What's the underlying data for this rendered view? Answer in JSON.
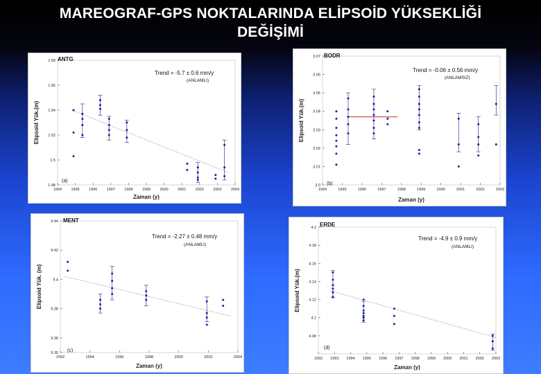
{
  "page": {
    "title_line1": "MAREOGRAF-GPS NOKTALARINDA ELİPSOİD YÜKSEKLİĞİ",
    "title_line2": "DEĞİŞİMİ"
  },
  "chart_data": [
    {
      "type": "scatter",
      "station": "ANTG",
      "panel_label": "(a)",
      "trend_text": "Trend = -5.7 ± 0.6 mm/y",
      "significance": "(ANLAMLI)",
      "xlabel": "Zaman (y)",
      "ylabel": "Elipsoid Yük.(m)",
      "xlim": [
        1994,
        2004
      ],
      "ylim": [
        1.48,
        1.58
      ],
      "x_ticks": [
        1994,
        1995,
        1996,
        1997,
        1998,
        1999,
        2000,
        2001,
        2002,
        2003,
        2004
      ],
      "x_tick_labels": [
        "1994",
        "1995",
        "1996",
        "1997",
        "1998",
        "1999",
        "2000",
        "2001",
        "2002",
        "2003",
        "2004"
      ],
      "y_ticks": [
        1.48,
        1.5,
        1.52,
        1.54,
        1.56,
        1.58
      ],
      "y_tick_labels": [
        "1.48",
        "1.5",
        "1.52",
        "1.54",
        "1.56",
        "1.58"
      ],
      "points": [
        {
          "x": 1994.9,
          "y": 1.54
        },
        {
          "x": 1994.9,
          "y": 1.522
        },
        {
          "x": 1994.9,
          "y": 1.503
        },
        {
          "x": 1995.4,
          "y": 1.537
        },
        {
          "x": 1995.4,
          "y": 1.533
        },
        {
          "x": 1995.4,
          "y": 1.528
        },
        {
          "x": 1995.4,
          "y": 1.52
        },
        {
          "x": 1996.4,
          "y": 1.548
        },
        {
          "x": 1996.4,
          "y": 1.544
        },
        {
          "x": 1996.4,
          "y": 1.541
        },
        {
          "x": 1996.9,
          "y": 1.533
        },
        {
          "x": 1996.9,
          "y": 1.528
        },
        {
          "x": 1996.9,
          "y": 1.524
        },
        {
          "x": 1996.9,
          "y": 1.52
        },
        {
          "x": 1997.9,
          "y": 1.53
        },
        {
          "x": 1997.9,
          "y": 1.524
        },
        {
          "x": 1997.9,
          "y": 1.518
        },
        {
          "x": 2001.3,
          "y": 1.497
        },
        {
          "x": 2001.3,
          "y": 1.492
        },
        {
          "x": 2001.9,
          "y": 1.494
        },
        {
          "x": 2001.9,
          "y": 1.49
        },
        {
          "x": 2001.9,
          "y": 1.486
        },
        {
          "x": 2001.9,
          "y": 1.484
        },
        {
          "x": 2002.9,
          "y": 1.488
        },
        {
          "x": 2002.9,
          "y": 1.485
        },
        {
          "x": 2003.4,
          "y": 1.512
        },
        {
          "x": 2003.4,
          "y": 1.494
        },
        {
          "x": 2003.4,
          "y": 1.487
        }
      ],
      "error_bars": [
        {
          "x": 1995.4,
          "low": 1.518,
          "high": 1.545
        },
        {
          "x": 1996.4,
          "low": 1.536,
          "high": 1.552
        },
        {
          "x": 1996.9,
          "low": 1.516,
          "high": 1.535
        },
        {
          "x": 1997.9,
          "low": 1.514,
          "high": 1.532
        },
        {
          "x": 2001.9,
          "low": 1.482,
          "high": 1.498
        },
        {
          "x": 2003.4,
          "low": 1.484,
          "high": 1.516
        }
      ],
      "trend_line": {
        "x1": 1994.8,
        "y1": 1.54,
        "x2": 2003.6,
        "y2": 1.49
      }
    },
    {
      "type": "scatter",
      "station": "BODR",
      "panel_label": "(b)",
      "trend_text": "Trend = -0.06 ± 0.56 mm/y",
      "significance": "(ANLAMSIZ)",
      "xlabel": "Zaman (y)",
      "ylabel": "Elipsoid Yük.(m)",
      "xlim": [
        1994,
        2003
      ],
      "ylim": [
        3.0,
        3.07
      ],
      "x_ticks": [
        1994,
        1995,
        1996,
        1997,
        1998,
        1999,
        2000,
        2001,
        2002,
        2003
      ],
      "x_tick_labels": [
        "1994",
        "1995",
        "1996",
        "1997",
        "1998",
        "1999",
        "2000",
        "2001",
        "2002",
        "2003"
      ],
      "y_ticks": [
        3.0,
        3.01,
        3.02,
        3.03,
        3.04,
        3.05,
        3.06,
        3.07
      ],
      "y_tick_labels": [
        "3.0",
        "3.01",
        "3.02",
        "3.03",
        "3.04",
        "3.05",
        "3.06",
        "3.07"
      ],
      "points": [
        {
          "x": 1994.7,
          "y": 3.04
        },
        {
          "x": 1994.7,
          "y": 3.036
        },
        {
          "x": 1994.7,
          "y": 3.031
        },
        {
          "x": 1994.7,
          "y": 3.027
        },
        {
          "x": 1994.7,
          "y": 3.024
        },
        {
          "x": 1994.7,
          "y": 3.021
        },
        {
          "x": 1994.7,
          "y": 3.017
        },
        {
          "x": 1994.7,
          "y": 3.011
        },
        {
          "x": 1995.3,
          "y": 3.047
        },
        {
          "x": 1995.3,
          "y": 3.041
        },
        {
          "x": 1995.3,
          "y": 3.037
        },
        {
          "x": 1995.3,
          "y": 3.033
        },
        {
          "x": 1995.3,
          "y": 3.028
        },
        {
          "x": 1996.6,
          "y": 3.048
        },
        {
          "x": 1996.6,
          "y": 3.044
        },
        {
          "x": 1996.6,
          "y": 3.041
        },
        {
          "x": 1996.6,
          "y": 3.038
        },
        {
          "x": 1996.6,
          "y": 3.035
        },
        {
          "x": 1996.6,
          "y": 3.031
        },
        {
          "x": 1996.6,
          "y": 3.028
        },
        {
          "x": 1997.3,
          "y": 3.04
        },
        {
          "x": 1997.3,
          "y": 3.036
        },
        {
          "x": 1997.3,
          "y": 3.033
        },
        {
          "x": 1998.9,
          "y": 3.052
        },
        {
          "x": 1998.9,
          "y": 3.048
        },
        {
          "x": 1998.9,
          "y": 3.044
        },
        {
          "x": 1998.9,
          "y": 3.041
        },
        {
          "x": 1998.9,
          "y": 3.038
        },
        {
          "x": 1998.9,
          "y": 3.034
        },
        {
          "x": 1998.9,
          "y": 3.031
        },
        {
          "x": 1998.9,
          "y": 3.019
        },
        {
          "x": 1998.9,
          "y": 3.017
        },
        {
          "x": 2000.9,
          "y": 3.036
        },
        {
          "x": 2000.9,
          "y": 3.022
        },
        {
          "x": 2000.9,
          "y": 3.01
        },
        {
          "x": 2001.9,
          "y": 3.033
        },
        {
          "x": 2001.9,
          "y": 3.026
        },
        {
          "x": 2001.9,
          "y": 3.022
        },
        {
          "x": 2001.9,
          "y": 3.016
        },
        {
          "x": 2002.8,
          "y": 3.044
        },
        {
          "x": 2002.8,
          "y": 3.022
        }
      ],
      "error_bars": [
        {
          "x": 1995.3,
          "low": 3.022,
          "high": 3.05
        },
        {
          "x": 1996.6,
          "low": 3.025,
          "high": 3.052
        },
        {
          "x": 1998.9,
          "low": 3.03,
          "high": 3.054
        },
        {
          "x": 2000.9,
          "low": 3.018,
          "high": 3.039
        },
        {
          "x": 2001.9,
          "low": 3.018,
          "high": 3.037
        },
        {
          "x": 2002.8,
          "low": 3.038,
          "high": 3.054
        }
      ],
      "trend_line": {
        "x1": 1995.3,
        "y1": 3.037,
        "x2": 1997.8,
        "y2": 3.037
      }
    },
    {
      "type": "scatter",
      "station": "MENT",
      "panel_label": "(c)",
      "trend_text": "Trend = -2.27 ± 0.48 mm/y",
      "significance": "(ANLAMLI)",
      "xlabel": "Zaman (y)",
      "ylabel": "Elipsoid Yük. (m)",
      "xlim": [
        1992,
        2004
      ],
      "ylim": [
        9.35,
        9.44
      ],
      "x_ticks": [
        1992,
        1994,
        1996,
        1998,
        2000,
        2002,
        2004
      ],
      "x_tick_labels": [
        "1992",
        "1994",
        "1996",
        "1998",
        "2000",
        "2002",
        "2004"
      ],
      "y_ticks": [
        9.35,
        9.36,
        9.38,
        9.4,
        9.42,
        9.44
      ],
      "y_tick_labels": [
        "9.35",
        "9.36",
        "9.38",
        "9.4",
        "9.42",
        "9.44"
      ],
      "points": [
        {
          "x": 1992.5,
          "y": 9.412
        },
        {
          "x": 1992.5,
          "y": 9.406
        },
        {
          "x": 1994.7,
          "y": 9.386
        },
        {
          "x": 1994.7,
          "y": 9.383
        },
        {
          "x": 1994.7,
          "y": 9.38
        },
        {
          "x": 1995.5,
          "y": 9.404
        },
        {
          "x": 1995.5,
          "y": 9.399
        },
        {
          "x": 1995.5,
          "y": 9.394
        },
        {
          "x": 1995.5,
          "y": 9.39
        },
        {
          "x": 1997.8,
          "y": 9.392
        },
        {
          "x": 1997.8,
          "y": 9.389
        },
        {
          "x": 1997.8,
          "y": 9.386
        },
        {
          "x": 2001.9,
          "y": 9.385
        },
        {
          "x": 2001.9,
          "y": 9.377
        },
        {
          "x": 2001.9,
          "y": 9.374
        },
        {
          "x": 2001.9,
          "y": 9.369
        },
        {
          "x": 2003.0,
          "y": 9.386
        },
        {
          "x": 2003.0,
          "y": 9.382
        }
      ],
      "error_bars": [
        {
          "x": 1994.7,
          "low": 9.377,
          "high": 9.39
        },
        {
          "x": 1995.5,
          "low": 9.386,
          "high": 9.409
        },
        {
          "x": 1997.8,
          "low": 9.382,
          "high": 9.396
        },
        {
          "x": 2001.9,
          "low": 9.371,
          "high": 9.388
        }
      ],
      "trend_line": {
        "x1": 1992.3,
        "y1": 9.402,
        "x2": 2003.5,
        "y2": 9.375
      }
    },
    {
      "type": "scatter",
      "station": "ERDE",
      "panel_label": "(d)",
      "trend_text": "Trend = -4.9 ± 0.9 mm/y",
      "significance": "(ANLAMLI)",
      "xlabel": "Zaman (y)",
      "ylabel": "Elipsoid Yük.(m)",
      "xlim": [
        1992,
        2003
      ],
      "ylim": [
        4.06,
        4.2
      ],
      "x_ticks": [
        1992,
        1993,
        1994,
        1995,
        1996,
        1997,
        1998,
        1999,
        2000,
        2001,
        2002,
        2003
      ],
      "x_tick_labels": [
        "1992",
        "1993",
        "1994",
        "1995",
        "1996",
        "1997",
        "1998",
        "1999",
        "2000",
        "2001",
        "2002",
        "2003"
      ],
      "y_ticks": [
        4.08,
        4.1,
        4.12,
        4.14,
        4.16,
        4.18,
        4.2
      ],
      "y_tick_labels": [
        "4.08",
        "4.1",
        "4.12",
        "4.14",
        "4.16",
        "4.18",
        "4.2"
      ],
      "points": [
        {
          "x": 1992.9,
          "y": 4.15
        },
        {
          "x": 1992.9,
          "y": 4.142
        },
        {
          "x": 1992.9,
          "y": 4.136
        },
        {
          "x": 1992.9,
          "y": 4.132
        },
        {
          "x": 1992.9,
          "y": 4.128
        },
        {
          "x": 1992.9,
          "y": 4.123
        },
        {
          "x": 1994.8,
          "y": 4.12
        },
        {
          "x": 1994.8,
          "y": 4.113
        },
        {
          "x": 1994.8,
          "y": 4.108
        },
        {
          "x": 1994.8,
          "y": 4.105
        },
        {
          "x": 1994.8,
          "y": 4.102
        },
        {
          "x": 1994.8,
          "y": 4.1
        },
        {
          "x": 1994.8,
          "y": 4.097
        },
        {
          "x": 1996.7,
          "y": 4.11
        },
        {
          "x": 1996.7,
          "y": 4.102
        },
        {
          "x": 1996.7,
          "y": 4.093
        },
        {
          "x": 2002.8,
          "y": 4.08
        },
        {
          "x": 2002.8,
          "y": 4.074
        },
        {
          "x": 2002.8,
          "y": 4.066
        }
      ],
      "error_bars": [
        {
          "x": 1992.9,
          "low": 4.122,
          "high": 4.152
        },
        {
          "x": 1994.8,
          "low": 4.095,
          "high": 4.118
        },
        {
          "x": 2002.8,
          "low": 4.064,
          "high": 4.082
        }
      ],
      "trend_line": {
        "x1": 1992.7,
        "y1": 4.13,
        "x2": 2003.0,
        "y2": 4.078
      }
    }
  ]
}
